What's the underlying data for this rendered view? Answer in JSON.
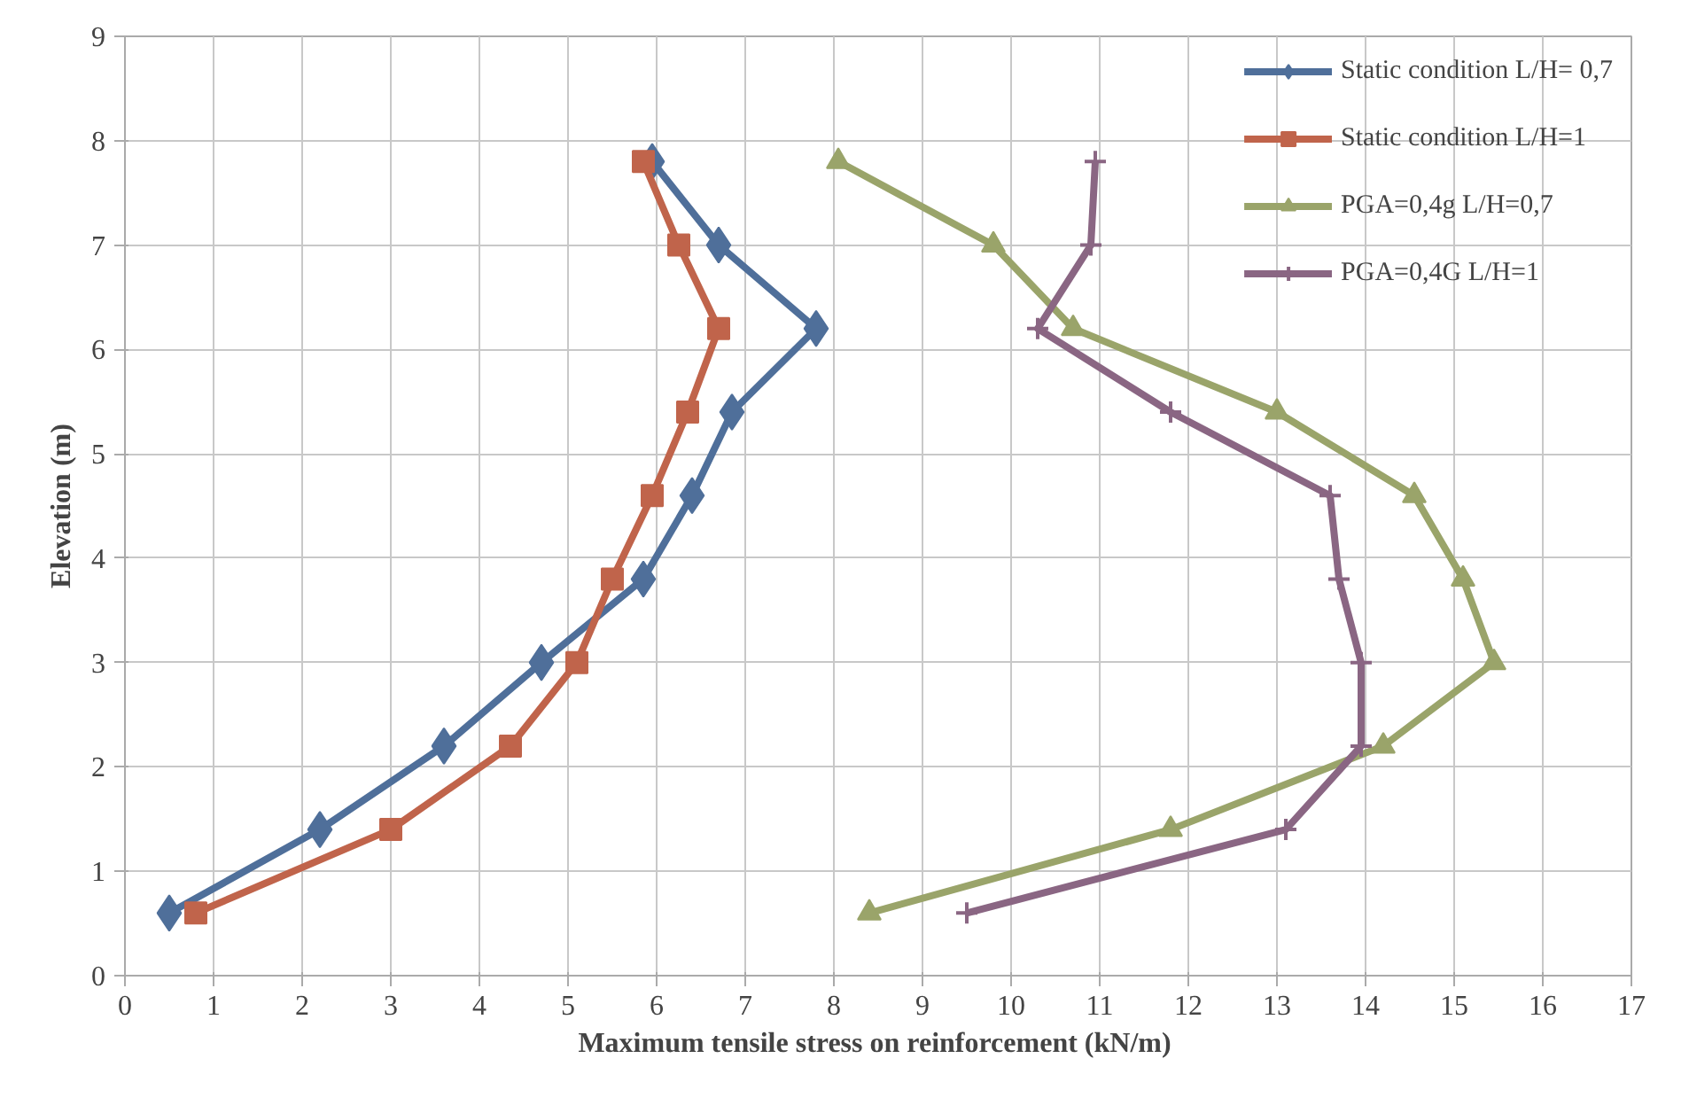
{
  "chart_data": {
    "type": "line",
    "xlabel": "Maximum tensile stress  on reinforcement (kN/m)",
    "ylabel": "Elevation (m)",
    "xlim": [
      0,
      17
    ],
    "xticks": [
      0,
      1,
      2,
      3,
      4,
      5,
      6,
      7,
      8,
      9,
      10,
      11,
      12,
      13,
      14,
      15,
      16,
      17
    ],
    "ylim": [
      0,
      9
    ],
    "yticks": [
      0,
      1,
      2,
      3,
      4,
      5,
      6,
      7,
      8,
      9
    ],
    "grid": true,
    "legend": "top right",
    "line_style": "solid",
    "series": [
      {
        "name": "Static condition L/H= 0,7",
        "color": "#4f6f9a",
        "marker": "diamond",
        "x": [
          0.5,
          2.2,
          3.6,
          4.7,
          5.85,
          6.4,
          6.85,
          7.8,
          6.7,
          5.95
        ],
        "values": [
          0.6,
          1.4,
          2.2,
          3.0,
          3.8,
          4.6,
          5.4,
          6.2,
          7.0,
          7.8
        ]
      },
      {
        "name": "Static condition L/H=1",
        "color": "#c0644b",
        "marker": "square",
        "x": [
          0.8,
          3.0,
          4.35,
          5.1,
          5.5,
          5.95,
          6.35,
          6.7,
          6.25,
          5.85
        ],
        "values": [
          0.6,
          1.4,
          2.2,
          3.0,
          3.8,
          4.6,
          5.4,
          6.2,
          7.0,
          7.8
        ]
      },
      {
        "name": "PGA=0,4g L/H=0,7",
        "color": "#9aa46a",
        "marker": "triangle",
        "x": [
          8.4,
          11.8,
          14.2,
          15.45,
          15.1,
          14.55,
          13.0,
          10.7,
          9.8,
          8.05
        ],
        "values": [
          0.6,
          1.4,
          2.2,
          3.0,
          3.8,
          4.6,
          5.4,
          6.2,
          7.0,
          7.8
        ]
      },
      {
        "name": "PGA=0,4G L/H=1",
        "color": "#8a6683",
        "marker": "cross",
        "x": [
          9.5,
          13.1,
          13.95,
          13.95,
          13.7,
          13.6,
          11.8,
          10.3,
          10.9,
          10.95
        ],
        "values": [
          0.6,
          1.4,
          2.2,
          3.0,
          3.8,
          4.6,
          5.4,
          6.2,
          7.0,
          7.8
        ]
      }
    ]
  }
}
